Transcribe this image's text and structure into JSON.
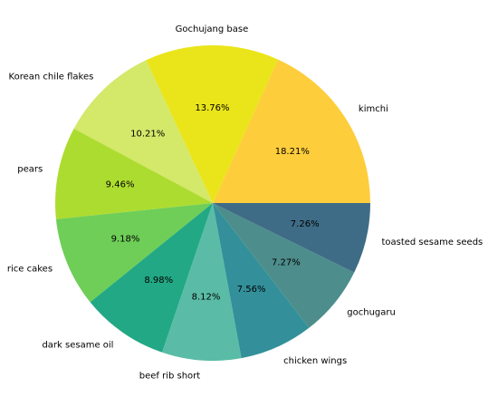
{
  "chart_data": {
    "type": "pie",
    "title": "",
    "start_angle_deg": 0,
    "direction": "counterclockwise",
    "slices": [
      {
        "label": "kimchi",
        "value": 18.21,
        "pct_label": "18.21%",
        "color": "#fecd3c"
      },
      {
        "label": "Gochujang base",
        "value": 13.76,
        "pct_label": "13.76%",
        "color": "#eae51a"
      },
      {
        "label": "Korean chile flakes",
        "value": 10.21,
        "pct_label": "10.21%",
        "color": "#d4e86a"
      },
      {
        "label": "pears",
        "value": 9.46,
        "pct_label": "9.46%",
        "color": "#addc30"
      },
      {
        "label": "rice cakes",
        "value": 9.18,
        "pct_label": "9.18%",
        "color": "#6ece58"
      },
      {
        "label": "dark sesame oil",
        "value": 8.98,
        "pct_label": "8.98%",
        "color": "#22a884"
      },
      {
        "label": "beef rib short",
        "value": 8.12,
        "pct_label": "8.12%",
        "color": "#5abca6"
      },
      {
        "label": "chicken wings",
        "value": 7.56,
        "pct_label": "7.56%",
        "color": "#33909a"
      },
      {
        "label": "gochugaru",
        "value": 7.27,
        "pct_label": "7.27%",
        "color": "#4d8d8b"
      },
      {
        "label": "toasted sesame seeds",
        "value": 7.26,
        "pct_label": "7.26%",
        "color": "#3e6c87"
      }
    ]
  }
}
